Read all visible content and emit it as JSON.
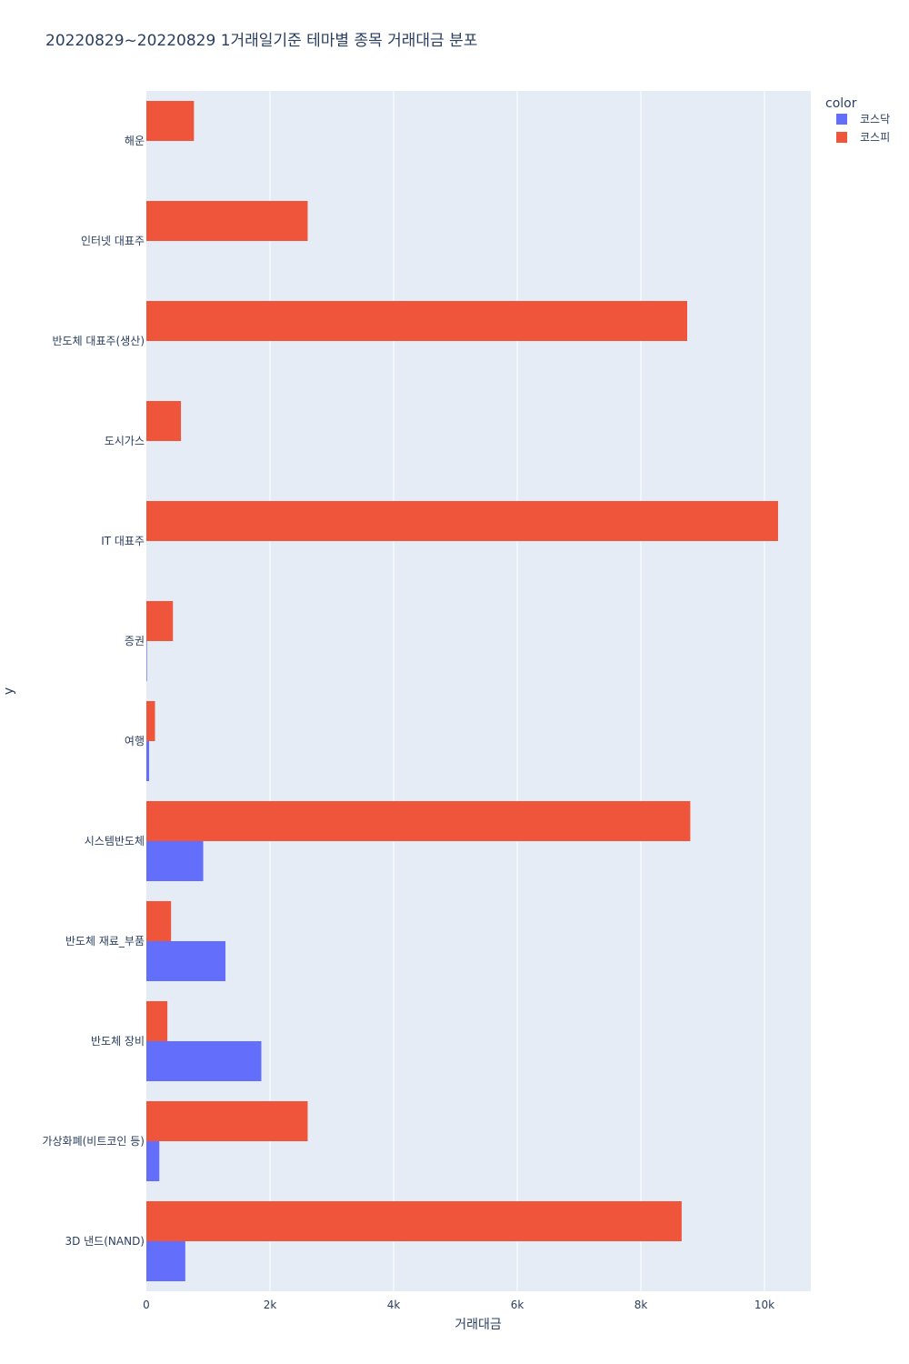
{
  "chart_data": {
    "type": "bar",
    "orientation": "horizontal",
    "barmode": "group",
    "title": "20220829~20220829 1거래일기준 테마별 종목 거래대금 분포",
    "xlabel": "거래대금",
    "ylabel": "y",
    "xlim": [
      0,
      10750
    ],
    "x_ticks": [
      0,
      2000,
      4000,
      6000,
      8000,
      10000
    ],
    "x_tick_labels": [
      "0",
      "2k",
      "4k",
      "6k",
      "8k",
      "10k"
    ],
    "grid": true,
    "legend": {
      "title": "color",
      "position": "top-right"
    },
    "categories": [
      "해운",
      "인터넷 대표주",
      "반도체 대표주(생산)",
      "도시가스",
      "IT 대표주",
      "증권",
      "여행",
      "시스템반도체",
      "반도체 재료_부품",
      "반도체 장비",
      "가상화폐(비트코인 등)",
      "3D 낸드(NAND)"
    ],
    "series": [
      {
        "name": "코스닥",
        "color": "#636efa",
        "values": [
          0,
          0,
          0,
          0,
          0,
          10,
          45,
          920,
          1280,
          1860,
          210,
          630
        ]
      },
      {
        "name": "코스피",
        "color": "#ef553b",
        "values": [
          770,
          2610,
          8750,
          560,
          10220,
          430,
          140,
          8800,
          400,
          340,
          2610,
          8660
        ]
      }
    ]
  }
}
